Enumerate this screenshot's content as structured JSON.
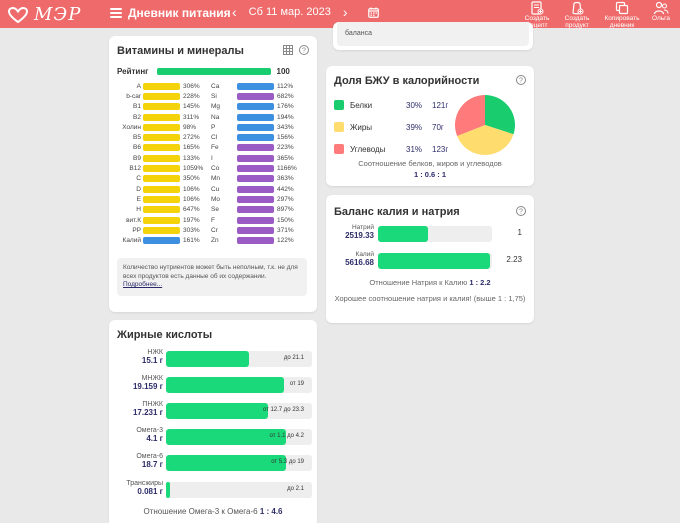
{
  "header": {
    "logo_text": "МЭР",
    "menu_title": "Дневник питания",
    "date": "Сб 11 мар. 2023",
    "tools": [
      {
        "label": "Создать\nрецепт",
        "icon": "recipe-icon"
      },
      {
        "label": "Создать\nпродукт",
        "icon": "product-icon"
      },
      {
        "label": "Копировать\nдневник",
        "icon": "copy-icon"
      },
      {
        "label": "Ольга",
        "icon": "user-icon"
      }
    ]
  },
  "colors": {
    "header": "#ef6b6b",
    "green": "#19d97a",
    "yellow": "#f4d30a",
    "blue": "#3d8fe0",
    "purple": "#9b5bc4",
    "protein": "#19cc6e",
    "fat": "#ffdc6e",
    "carbs": "#ff7a7a"
  },
  "top_partial": {
    "text": "баланса"
  },
  "vitamins": {
    "title": "Витамины и минералы",
    "rating_label": "Рейтинг",
    "rating_value": "100",
    "rating": 100,
    "left": [
      {
        "name": "A",
        "value": "306%",
        "color": "yellow"
      },
      {
        "name": "b-car",
        "value": "228%",
        "color": "yellow"
      },
      {
        "name": "B1",
        "value": "145%",
        "color": "yellow"
      },
      {
        "name": "B2",
        "value": "311%",
        "color": "yellow"
      },
      {
        "name": "Холин",
        "value": "98%",
        "color": "yellow"
      },
      {
        "name": "B5",
        "value": "272%",
        "color": "yellow"
      },
      {
        "name": "B6",
        "value": "165%",
        "color": "yellow"
      },
      {
        "name": "B9",
        "value": "133%",
        "color": "yellow"
      },
      {
        "name": "B12",
        "value": "1059%",
        "color": "yellow"
      },
      {
        "name": "C",
        "value": "350%",
        "color": "yellow"
      },
      {
        "name": "D",
        "value": "106%",
        "color": "yellow"
      },
      {
        "name": "E",
        "value": "106%",
        "color": "yellow"
      },
      {
        "name": "H",
        "value": "647%",
        "color": "yellow"
      },
      {
        "name": "вит.К",
        "value": "197%",
        "color": "yellow"
      },
      {
        "name": "PP",
        "value": "303%",
        "color": "yellow"
      },
      {
        "name": "Калий",
        "value": "161%",
        "color": "blue"
      }
    ],
    "right": [
      {
        "name": "Ca",
        "value": "112%",
        "color": "blue"
      },
      {
        "name": "Si",
        "value": "682%",
        "color": "purple"
      },
      {
        "name": "Mg",
        "value": "176%",
        "color": "blue"
      },
      {
        "name": "Na",
        "value": "194%",
        "color": "blue"
      },
      {
        "name": "P",
        "value": "343%",
        "color": "blue"
      },
      {
        "name": "Cl",
        "value": "156%",
        "color": "blue"
      },
      {
        "name": "Fe",
        "value": "223%",
        "color": "purple"
      },
      {
        "name": "I",
        "value": "365%",
        "color": "purple"
      },
      {
        "name": "Co",
        "value": "1166%",
        "color": "purple"
      },
      {
        "name": "Mn",
        "value": "363%",
        "color": "purple"
      },
      {
        "name": "Cu",
        "value": "442%",
        "color": "purple"
      },
      {
        "name": "Mo",
        "value": "297%",
        "color": "purple"
      },
      {
        "name": "Se",
        "value": "897%",
        "color": "purple"
      },
      {
        "name": "F",
        "value": "150%",
        "color": "purple"
      },
      {
        "name": "Cr",
        "value": "371%",
        "color": "purple"
      },
      {
        "name": "Zn",
        "value": "122%",
        "color": "purple"
      }
    ],
    "note": "Количество нутриентов может быть неполным, т.к. не для всех продуктов есть данные об их содержании.",
    "note_link": "Подробнее..."
  },
  "fatty_acids": {
    "title": "Жирные кислоты",
    "rows": [
      {
        "name": "НЖК",
        "amount": "15.1 г",
        "fill": 0.57,
        "norm": "до 21.1"
      },
      {
        "name": "МНЖК",
        "amount": "19.159 г",
        "fill": 0.81,
        "norm": "от 19"
      },
      {
        "name": "ПНЖК",
        "amount": "17.231 г",
        "fill": 0.7,
        "norm": "от 12.7 до 23.3"
      },
      {
        "name": "Омега-3",
        "amount": "4.1 г",
        "fill": 0.82,
        "norm": "от 1.1 до 4.2"
      },
      {
        "name": "Омега-6",
        "amount": "18.7 г",
        "fill": 0.82,
        "norm": "от 5.3 до 19"
      },
      {
        "name": "Трансжиры",
        "amount": "0.081 г",
        "fill": 0.03,
        "norm": "до 2.1"
      }
    ],
    "footer_label": "Отношение Омега-3 к Омега-6",
    "footer_value": "1 : 4.6"
  },
  "bju": {
    "title": "Доля БЖУ в калорийности",
    "rows": [
      {
        "name": "Белки",
        "pct": "30%",
        "grams": "121г",
        "color": "protein",
        "share": 30
      },
      {
        "name": "Жиры",
        "pct": "39%",
        "grams": "70г",
        "color": "fat",
        "share": 39
      },
      {
        "name": "Углеводы",
        "pct": "31%",
        "grams": "123г",
        "color": "carbs",
        "share": 31
      }
    ],
    "footer": "Соотношение белков, жиров и углеводов",
    "ratio": "1 : 0.6 : 1"
  },
  "potassium_sodium": {
    "title": "Баланс калия и натрия",
    "rows": [
      {
        "name": "Натрий",
        "amount": "2519.33",
        "fill": 0.44,
        "value": "1"
      },
      {
        "name": "Калий",
        "amount": "5616.68",
        "fill": 0.98,
        "value": "2.23"
      }
    ],
    "footer_label": "Отношение Натрия к Калию",
    "footer_value": "1 : 2.2",
    "footer_note": "Хорошее соотношение натрия и калия! (выше 1 : 1,75)"
  }
}
